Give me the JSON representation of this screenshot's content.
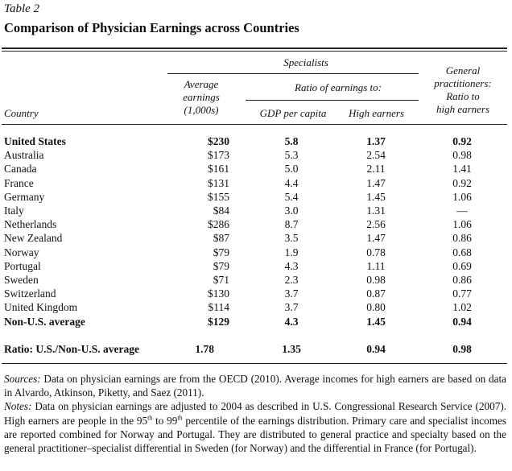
{
  "table_label": "Table 2",
  "title": "Comparison of Physician Earnings across Countries",
  "headers": {
    "specialists": "Specialists",
    "average_earnings": [
      "Average",
      "earnings",
      "(1,000s)"
    ],
    "ratio_of_earnings": "Ratio of earnings to:",
    "gdp_per_capita": "GDP per capita",
    "high_earners": "High earners",
    "general_practitioners": [
      "General",
      "practitioners:",
      "Ratio to",
      "high earners"
    ],
    "country": "Country"
  },
  "rows": [
    {
      "country": "United States",
      "avg": "$230",
      "gdp": "5.8",
      "high": "1.37",
      "gp": "0.92",
      "bold": true
    },
    {
      "country": "Australia",
      "avg": "$173",
      "gdp": "5.3",
      "high": "2.54",
      "gp": "0.98",
      "bold": false
    },
    {
      "country": "Canada",
      "avg": "$161",
      "gdp": "5.0",
      "high": "2.11",
      "gp": "1.41",
      "bold": false
    },
    {
      "country": "France",
      "avg": "$131",
      "gdp": "4.4",
      "high": "1.47",
      "gp": "0.92",
      "bold": false
    },
    {
      "country": "Germany",
      "avg": "$155",
      "gdp": "5.4",
      "high": "1.45",
      "gp": "1.06",
      "bold": false
    },
    {
      "country": "Italy",
      "avg": "$84",
      "gdp": "3.0",
      "high": "1.31",
      "gp": "—",
      "bold": false
    },
    {
      "country": "Netherlands",
      "avg": "$286",
      "gdp": "8.7",
      "high": "2.56",
      "gp": "1.06",
      "bold": false
    },
    {
      "country": "New Zealand",
      "avg": "$87",
      "gdp": "3.5",
      "high": "1.47",
      "gp": "0.86",
      "bold": false
    },
    {
      "country": "Norway",
      "avg": "$79",
      "gdp": "1.9",
      "high": "0.78",
      "gp": "0.68",
      "bold": false
    },
    {
      "country": "Portugal",
      "avg": "$79",
      "gdp": "4.3",
      "high": "1.11",
      "gp": "0.69",
      "bold": false
    },
    {
      "country": "Sweden",
      "avg": "$71",
      "gdp": "2.3",
      "high": "0.98",
      "gp": "0.86",
      "bold": false
    },
    {
      "country": "Switzerland",
      "avg": "$130",
      "gdp": "3.7",
      "high": "0.87",
      "gp": "0.77",
      "bold": false
    },
    {
      "country": "United Kingdom",
      "avg": "$114",
      "gdp": "3.7",
      "high": "0.80",
      "gp": "1.02",
      "bold": false
    },
    {
      "country": "Non-U.S. average",
      "avg": "$129",
      "gdp": "4.3",
      "high": "1.45",
      "gp": "0.94",
      "bold": true
    }
  ],
  "ratio_row": {
    "country": "Ratio: U.S./Non-U.S. average",
    "avg": "1.78",
    "gdp": "1.35",
    "high": "0.94",
    "gp": "0.98"
  },
  "notes": {
    "sources_label": "Sources:",
    "sources_text": "Data on physician earnings are from the OECD (2010). Average incomes for high earners are based on data in Alvardo, Atkinson, Piketty, and Saez (2011).",
    "notes_label": "Notes:",
    "notes_part1": "Data on physician earnings are adjusted to 2004 as described in U.S. Congressional Research Service (2007). High earners are people in the 95",
    "sup1": "th",
    "notes_part2": " to 99",
    "sup2": "th",
    "notes_part3": " percentile of the earnings distribution. Primary care and specialist incomes are reported combined for Norway and Portugal. They are distributed to general practice and specialty based on the general practitioner–specialist differential in Sweden (for Norway) and the differential in France (for Portugal)."
  }
}
